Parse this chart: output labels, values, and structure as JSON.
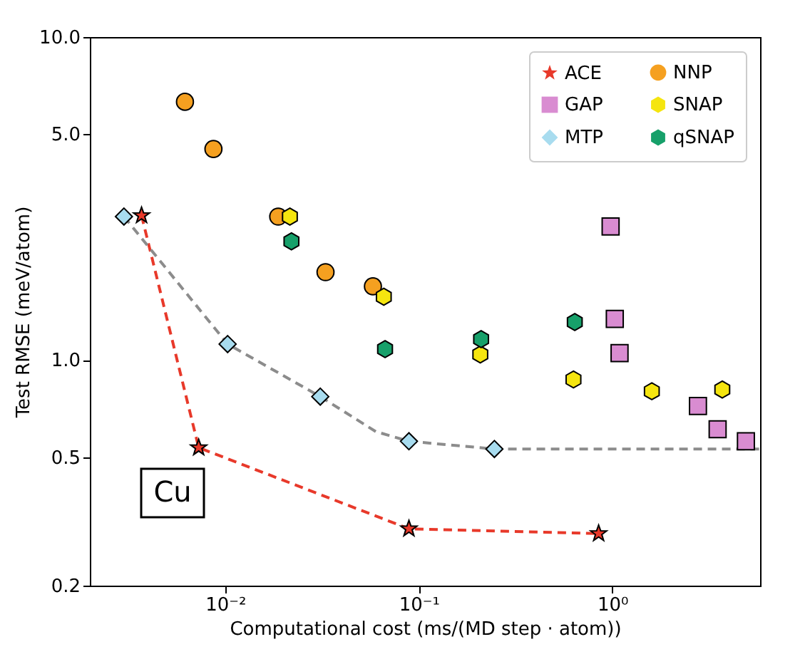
{
  "chart_data": {
    "type": "scatter",
    "xlabel": "Computational cost (ms/(MD step · atom))",
    "ylabel": "Test RMSE (meV/atom)",
    "log": "xy",
    "xlim": [
      0.002,
      5.8
    ],
    "ylim": [
      0.2,
      10
    ],
    "xticks": [
      {
        "value": 0.01,
        "label": "10⁻²"
      },
      {
        "value": 0.1,
        "label": "10⁻¹"
      },
      {
        "value": 1,
        "label": "10⁰"
      }
    ],
    "yticks": [
      0.2,
      0.5,
      {
        "value": 1,
        "label": "1.0"
      },
      {
        "value": 5,
        "label": "5.0"
      },
      {
        "value": 10,
        "label": "10.0"
      }
    ],
    "grid": false,
    "legend": "top right",
    "annotations": [
      "Cu"
    ],
    "series": [
      {
        "name": "ACE",
        "type": "line",
        "marker": "star",
        "line_style": "dashed",
        "color": "#e8392a",
        "x": [
          0.0037,
          0.0073,
          0.089,
          0.85
        ],
        "values": [
          2.8,
          0.535,
          0.3,
          0.29
        ]
      },
      {
        "name": "GAP",
        "marker": "square",
        "color": "#d98cd1",
        "x": [
          0.98,
          1.03,
          1.09,
          2.77,
          3.5,
          4.9
        ],
        "values": [
          2.59,
          1.34,
          1.05,
          0.72,
          0.61,
          0.56
        ]
      },
      {
        "name": "MTP",
        "marker": "diamond",
        "color": "#a8dcef",
        "x": [
          0.003,
          0.0103,
          0.031,
          0.089,
          0.246
        ],
        "values": [
          2.78,
          1.12,
          0.77,
          0.56,
          0.53
        ]
      },
      {
        "name": "NNP",
        "marker": "circle",
        "color": "#f5a020",
        "x": [
          0.0062,
          0.0087,
          0.0188,
          0.033,
          0.058
        ],
        "values": [
          6.3,
          4.5,
          2.78,
          1.87,
          1.69
        ]
      },
      {
        "name": "SNAP",
        "color": "#f5e50f",
        "x": [
          0.0216,
          0.066,
          0.208,
          0.63,
          1.6,
          3.7
        ],
        "values": [
          2.78,
          1.57,
          1.04,
          0.87,
          0.8,
          0.81
        ]
      },
      {
        "name": "qSNAP",
        "color": "#17a06a",
        "x": [
          0.022,
          0.067,
          0.21,
          0.64
        ],
        "values": [
          2.33,
          1.08,
          1.16,
          1.31
        ]
      },
      {
        "type": "line",
        "line_style": "dashed",
        "color": "#8c8c8c",
        "x": [
          0.003,
          0.0103,
          0.031,
          0.06,
          0.089,
          0.246,
          5.8
        ],
        "values": [
          2.78,
          1.12,
          0.77,
          0.6,
          0.56,
          0.53,
          0.53
        ]
      }
    ]
  }
}
